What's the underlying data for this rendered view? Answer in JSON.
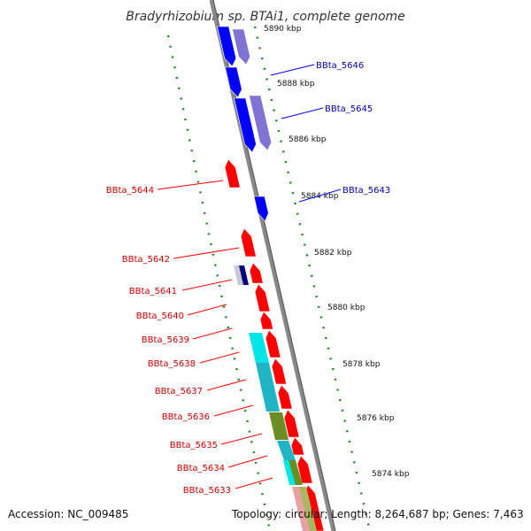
{
  "title": "Bradyrhizobium sp. BTAi1, complete genome",
  "accession_label": "Accession: NC_009485",
  "summary_label": "Topology: circular; Length: 8,264,687 bp; Genes: 7,463",
  "ticks": [
    "5890 kbp",
    "5888 kbp",
    "5886 kbp",
    "5884 kbp",
    "5882 kbp",
    "5880 kbp",
    "5878 kbp",
    "5876 kbp",
    "5874 kbp"
  ],
  "forward_genes": [
    "BBta_5646",
    "BBta_5645",
    "BBta_5643"
  ],
  "reverse_genes": [
    "BBta_5644",
    "BBta_5642",
    "BBta_5641",
    "BBta_5640",
    "BBta_5639",
    "BBta_5638",
    "BBta_5637",
    "BBta_5636",
    "BBta_5635",
    "BBta_5634",
    "BBta_5633"
  ],
  "colors": {
    "forward_gene": "#0000ff",
    "forward_label": "#0000aa",
    "reverse_gene": "#ff0000",
    "reverse_label": "#cc0000",
    "feature_slate": "#6a5acd",
    "feature_cyan": "#00e5e5",
    "feature_olive": "#6b8e23",
    "backbone": "#888888",
    "tick_dots": "#228b22"
  }
}
